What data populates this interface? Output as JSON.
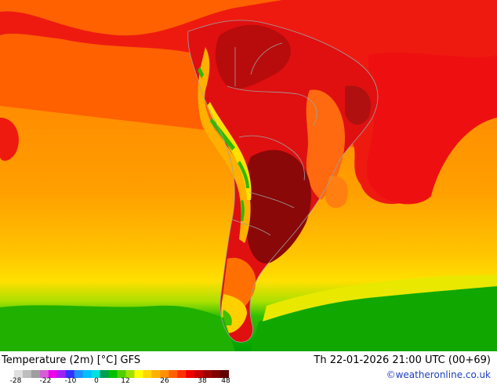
{
  "map": {
    "title": "Temperature (2m) [°C] GFS",
    "valid_time": "Th 22-01-2026 21:00 UTC (00+69)",
    "credit": "©weatheronline.co.uk",
    "legend": {
      "ticks": [
        "-28",
        "-22",
        "-10",
        "0",
        "12",
        "26",
        "38",
        "48"
      ],
      "colors": [
        "#e0e0e0",
        "#bdbdbd",
        "#9e9e9e",
        "#d85cd8",
        "#ee00ee",
        "#a020f0",
        "#3030ff",
        "#1e90ff",
        "#00bfff",
        "#00e0e0",
        "#00a050",
        "#00c000",
        "#50d000",
        "#a0e000",
        "#ffff00",
        "#ffd700",
        "#ffb000",
        "#ff9000",
        "#ff6000",
        "#ff3000",
        "#ee0000",
        "#c80000",
        "#a00000",
        "#800000",
        "#600000"
      ]
    },
    "palette": {
      "ocean_far": "#ff9a00",
      "ocean_mid": "#ff8a00",
      "ocean_warm": "#ff6a00",
      "hot": "#ee1010",
      "very_hot": "#c01010",
      "extreme": "#8e0a0a",
      "cool_green": "#00b000",
      "light_green": "#40c000",
      "yellow": "#ffe000",
      "border": "#a0a0a0"
    }
  }
}
